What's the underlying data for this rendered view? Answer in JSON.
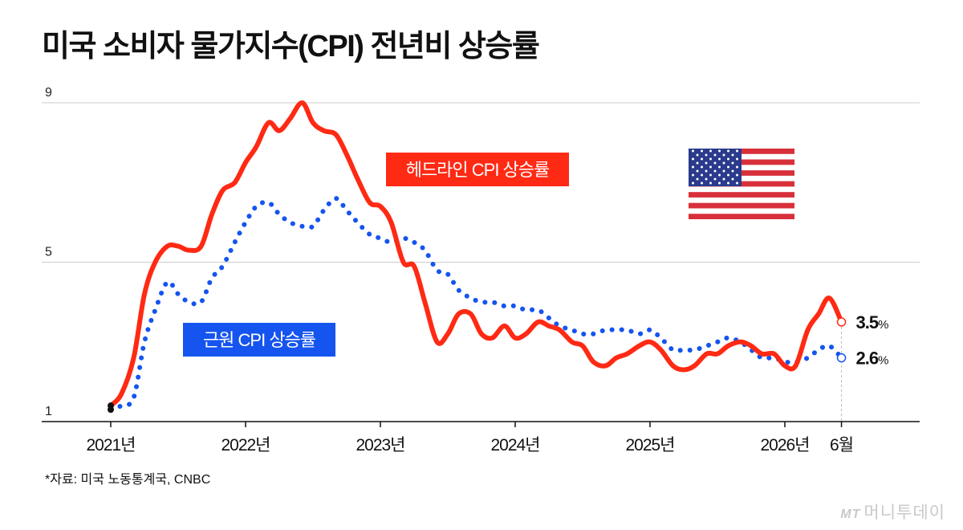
{
  "title": "미국 소비자 물가지수(CPI) 전년비 상승률",
  "source": "*자료: 미국 노동통계국, CNBC",
  "watermark": {
    "logo": "MT",
    "text": "머니투데이"
  },
  "chart_data": {
    "type": "line",
    "x_ticks": [
      "2021년",
      "2022년",
      "2023년",
      "2024년",
      "2025년",
      "2026년"
    ],
    "x_end_label": "6월",
    "y_ticks": [
      1,
      5,
      9
    ],
    "ylim": [
      1,
      9
    ],
    "grid": true,
    "colors": {
      "headline": "#ff2a14",
      "core": "#1554ef",
      "marker": "#111111",
      "axis": "#111111",
      "grid": "#cccccc"
    },
    "series": [
      {
        "id": "headline",
        "name": "헤드라인 CPI 상승률",
        "style": "solid",
        "end_label": "3.5",
        "end_unit": "%",
        "x": [
          2021.0,
          2021.08,
          2021.17,
          2021.25,
          2021.33,
          2021.42,
          2021.5,
          2021.58,
          2021.67,
          2021.75,
          2021.83,
          2021.92,
          2022.0,
          2022.08,
          2022.17,
          2022.25,
          2022.33,
          2022.42,
          2022.5,
          2022.58,
          2022.67,
          2022.75,
          2022.83,
          2022.92,
          2023.0,
          2023.08,
          2023.17,
          2023.25,
          2023.33,
          2023.42,
          2023.5,
          2023.58,
          2023.67,
          2023.75,
          2023.83,
          2023.92,
          2024.0,
          2024.08,
          2024.17,
          2024.25,
          2024.33,
          2024.42,
          2024.5,
          2024.58,
          2024.67,
          2024.75,
          2024.83,
          2024.92,
          2025.0,
          2025.08,
          2025.17,
          2025.25,
          2025.33,
          2025.42,
          2025.5,
          2025.58,
          2025.67,
          2025.75,
          2025.83,
          2025.92,
          2026.0,
          2026.08,
          2026.17,
          2026.25,
          2026.33,
          2026.42
        ],
        "values": [
          1.4,
          1.7,
          2.6,
          4.2,
          5.0,
          5.4,
          5.4,
          5.3,
          5.4,
          6.2,
          6.8,
          7.0,
          7.5,
          7.9,
          8.5,
          8.3,
          8.6,
          9.0,
          8.5,
          8.3,
          8.2,
          7.7,
          7.1,
          6.5,
          6.4,
          6.0,
          5.0,
          4.9,
          4.0,
          3.0,
          3.2,
          3.7,
          3.7,
          3.2,
          3.1,
          3.4,
          3.1,
          3.2,
          3.5,
          3.4,
          3.3,
          3.0,
          2.9,
          2.5,
          2.4,
          2.6,
          2.7,
          2.9,
          3.0,
          2.8,
          2.4,
          2.3,
          2.4,
          2.7,
          2.7,
          2.9,
          3.0,
          2.9,
          2.7,
          2.7,
          2.4,
          2.4,
          3.3,
          3.7,
          4.1,
          3.5
        ]
      },
      {
        "id": "core",
        "name": "근원 CPI 상승률",
        "style": "dotted",
        "end_label": "2.6",
        "end_unit": "%",
        "x": [
          2021.0,
          2021.08,
          2021.17,
          2021.25,
          2021.33,
          2021.42,
          2021.5,
          2021.58,
          2021.67,
          2021.75,
          2021.83,
          2021.92,
          2022.0,
          2022.08,
          2022.17,
          2022.25,
          2022.33,
          2022.42,
          2022.5,
          2022.58,
          2022.67,
          2022.75,
          2022.83,
          2022.92,
          2023.0,
          2023.08,
          2023.17,
          2023.25,
          2023.33,
          2023.42,
          2023.5,
          2023.58,
          2023.67,
          2023.75,
          2023.83,
          2023.92,
          2024.0,
          2024.08,
          2024.17,
          2024.25,
          2024.33,
          2024.42,
          2024.5,
          2024.58,
          2024.67,
          2024.75,
          2024.83,
          2024.92,
          2025.0,
          2025.08,
          2025.17,
          2025.25,
          2025.33,
          2025.42,
          2025.5,
          2025.58,
          2025.67,
          2025.75,
          2025.83,
          2025.92,
          2026.0,
          2026.08,
          2026.17,
          2026.25,
          2026.33,
          2026.42
        ],
        "values": [
          1.3,
          1.4,
          1.6,
          3.0,
          3.8,
          4.5,
          4.2,
          4.0,
          4.0,
          4.6,
          4.9,
          5.5,
          6.0,
          6.4,
          6.5,
          6.2,
          6.0,
          5.9,
          5.9,
          6.3,
          6.6,
          6.3,
          6.0,
          5.7,
          5.6,
          5.5,
          5.6,
          5.5,
          5.3,
          4.8,
          4.7,
          4.3,
          4.1,
          4.0,
          4.0,
          3.9,
          3.9,
          3.8,
          3.8,
          3.6,
          3.4,
          3.3,
          3.2,
          3.2,
          3.3,
          3.3,
          3.3,
          3.2,
          3.3,
          3.1,
          2.8,
          2.8,
          2.8,
          2.9,
          3.0,
          3.1,
          3.0,
          2.8,
          2.6,
          2.6,
          2.5,
          2.5,
          2.6,
          2.8,
          2.9,
          2.6
        ]
      }
    ]
  }
}
